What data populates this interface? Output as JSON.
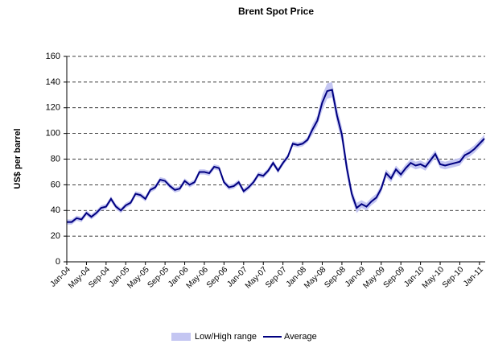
{
  "chart_data": {
    "type": "line",
    "title": "Brent Spot Price",
    "y_label": "US$ per barrel",
    "categories": [
      "Jan-04",
      null,
      null,
      null,
      "May-04",
      null,
      null,
      null,
      "Sep-04",
      null,
      null,
      null,
      "Jan-05",
      null,
      null,
      null,
      "May-05",
      null,
      null,
      null,
      "Sep-05",
      null,
      null,
      null,
      "Jan-06",
      null,
      null,
      null,
      "May-06",
      null,
      null,
      null,
      "Sep-06",
      null,
      null,
      null,
      "Jan-07",
      null,
      null,
      null,
      "May-07",
      null,
      null,
      null,
      "Sep-07",
      null,
      null,
      null,
      "Jan-08",
      null,
      null,
      null,
      "May-08",
      null,
      null,
      null,
      "Sep-08",
      null,
      null,
      null,
      "Jan-09",
      null,
      null,
      null,
      "May-09",
      null,
      null,
      null,
      "Sep-09",
      null,
      null,
      null,
      "Jan-10",
      null,
      null,
      null,
      "May-10",
      null,
      null,
      null,
      "Sep-10",
      null,
      null,
      null,
      "Jan-11",
      null
    ],
    "series": [
      {
        "name": "Low/High range",
        "color": "#c4c6f2",
        "low": [
          29,
          29,
          32,
          31,
          36,
          33,
          36,
          40,
          41,
          47,
          41,
          38,
          42,
          44,
          51,
          50,
          47,
          54,
          56,
          62,
          61,
          57,
          54,
          55,
          61,
          58,
          60,
          68,
          68,
          67,
          72,
          71,
          60,
          56,
          57,
          60,
          53,
          56,
          60,
          66,
          65,
          69,
          75,
          69,
          75,
          80,
          90,
          89,
          90,
          93,
          99,
          106,
          118,
          127,
          128,
          108,
          93,
          67,
          49,
          38,
          42,
          40,
          44,
          47,
          54,
          66,
          62,
          69,
          65,
          70,
          74,
          72,
          73,
          71,
          76,
          81,
          73,
          72,
          73,
          74,
          75,
          80,
          82,
          85,
          89,
          93
        ],
        "high": [
          33,
          33,
          36,
          35,
          40,
          37,
          40,
          44,
          45,
          51,
          45,
          42,
          46,
          48,
          55,
          54,
          51,
          58,
          60,
          66,
          65,
          61,
          58,
          59,
          65,
          62,
          64,
          72,
          72,
          71,
          76,
          75,
          64,
          60,
          61,
          64,
          57,
          60,
          64,
          70,
          69,
          73,
          79,
          73,
          79,
          84,
          94,
          93,
          94,
          97,
          107,
          114,
          130,
          139,
          140,
          120,
          105,
          79,
          57,
          46,
          48,
          46,
          50,
          53,
          60,
          72,
          68,
          75,
          71,
          76,
          80,
          78,
          79,
          77,
          82,
          87,
          79,
          78,
          79,
          80,
          81,
          86,
          88,
          91,
          95,
          99
        ]
      },
      {
        "name": "Average",
        "color": "#000080",
        "values": [
          31,
          31,
          34,
          33,
          38,
          35,
          38,
          42,
          43,
          49,
          43,
          40,
          44,
          46,
          53,
          52,
          49,
          56,
          58,
          64,
          63,
          59,
          56,
          57,
          63,
          60,
          62,
          70,
          70,
          69,
          74,
          73,
          62,
          58,
          59,
          62,
          55,
          58,
          62,
          68,
          67,
          71,
          77,
          71,
          77,
          82,
          92,
          91,
          92,
          95,
          103,
          110,
          124,
          133,
          134,
          114,
          99,
          73,
          53,
          42,
          45,
          43,
          47,
          50,
          57,
          69,
          65,
          72,
          68,
          73,
          77,
          75,
          76,
          74,
          79,
          84,
          76,
          75,
          76,
          77,
          78,
          83,
          85,
          88,
          92,
          96
        ]
      }
    ],
    "ylim": [
      0,
      160
    ],
    "yticks": [
      0,
      20,
      40,
      60,
      80,
      100,
      120,
      140,
      160
    ],
    "grid": true,
    "legend": "bottom"
  }
}
